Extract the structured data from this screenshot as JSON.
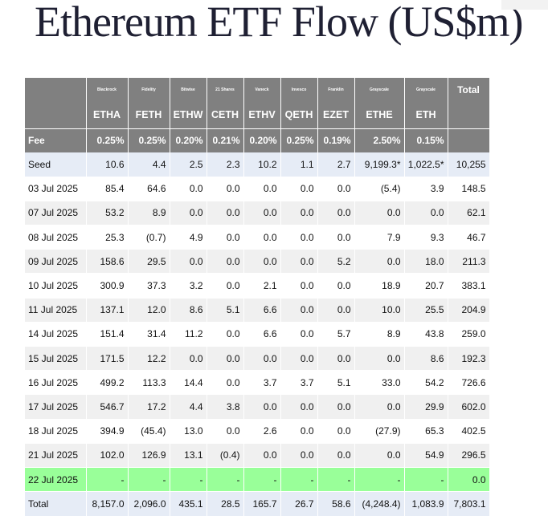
{
  "title": "Ethereum ETF Flow (US$m)",
  "header": {
    "issuers": [
      "Blackrock",
      "Fidelity",
      "Bitwise",
      "21 Shares",
      "Vaneck",
      "Invesco",
      "Franklin",
      "Grayscale",
      "Grayscale"
    ],
    "total_label": "Total",
    "tickers": [
      "ETHA",
      "FETH",
      "ETHW",
      "CETH",
      "ETHV",
      "QETH",
      "EZET",
      "ETHE",
      "ETH"
    ],
    "fee_label": "Fee",
    "fees": [
      "0.25%",
      "0.25%",
      "0.20%",
      "0.21%",
      "0.20%",
      "0.25%",
      "0.19%",
      "2.50%",
      "0.15%"
    ]
  },
  "rows": [
    {
      "label": "Seed",
      "values": [
        "10.6",
        "4.4",
        "2.5",
        "2.3",
        "10.2",
        "1.1",
        "2.7",
        "9,199.3*",
        "1,022.5*"
      ],
      "total": "10,255",
      "style": "seed"
    },
    {
      "label": "03 Jul 2025",
      "values": [
        "85.4",
        "64.6",
        "0.0",
        "0.0",
        "0.0",
        "0.0",
        "0.0",
        "(5.4)",
        "3.9"
      ],
      "total": "148.5",
      "style": "odd"
    },
    {
      "label": "07 Jul 2025",
      "values": [
        "53.2",
        "8.9",
        "0.0",
        "0.0",
        "0.0",
        "0.0",
        "0.0",
        "0.0",
        "0.0"
      ],
      "total": "62.1",
      "style": "even"
    },
    {
      "label": "08 Jul 2025",
      "values": [
        "25.3",
        "(0.7)",
        "4.9",
        "0.0",
        "0.0",
        "0.0",
        "0.0",
        "7.9",
        "9.3"
      ],
      "total": "46.7",
      "style": "odd"
    },
    {
      "label": "09 Jul 2025",
      "values": [
        "158.6",
        "29.5",
        "0.0",
        "0.0",
        "0.0",
        "0.0",
        "5.2",
        "0.0",
        "18.0"
      ],
      "total": "211.3",
      "style": "even"
    },
    {
      "label": "10 Jul 2025",
      "values": [
        "300.9",
        "37.3",
        "3.2",
        "0.0",
        "2.1",
        "0.0",
        "0.0",
        "18.9",
        "20.7"
      ],
      "total": "383.1",
      "style": "odd"
    },
    {
      "label": "11 Jul 2025",
      "values": [
        "137.1",
        "12.0",
        "8.6",
        "5.1",
        "6.6",
        "0.0",
        "0.0",
        "10.0",
        "25.5"
      ],
      "total": "204.9",
      "style": "even"
    },
    {
      "label": "14 Jul 2025",
      "values": [
        "151.4",
        "31.4",
        "11.2",
        "0.0",
        "6.6",
        "0.0",
        "5.7",
        "8.9",
        "43.8"
      ],
      "total": "259.0",
      "style": "odd"
    },
    {
      "label": "15 Jul 2025",
      "values": [
        "171.5",
        "12.2",
        "0.0",
        "0.0",
        "0.0",
        "0.0",
        "0.0",
        "0.0",
        "8.6"
      ],
      "total": "192.3",
      "style": "even"
    },
    {
      "label": "16 Jul 2025",
      "values": [
        "499.2",
        "113.3",
        "14.4",
        "0.0",
        "3.7",
        "3.7",
        "5.1",
        "33.0",
        "54.2"
      ],
      "total": "726.6",
      "style": "odd"
    },
    {
      "label": "17 Jul 2025",
      "values": [
        "546.7",
        "17.2",
        "4.4",
        "3.8",
        "0.0",
        "0.0",
        "0.0",
        "0.0",
        "29.9"
      ],
      "total": "602.0",
      "style": "even"
    },
    {
      "label": "18 Jul 2025",
      "values": [
        "394.9",
        "(45.4)",
        "13.0",
        "0.0",
        "2.6",
        "0.0",
        "0.0",
        "(27.9)",
        "65.3"
      ],
      "total": "402.5",
      "style": "odd"
    },
    {
      "label": "21 Jul 2025",
      "values": [
        "102.0",
        "126.9",
        "13.1",
        "(0.4)",
        "0.0",
        "0.0",
        "0.0",
        "0.0",
        "54.9"
      ],
      "total": "296.5",
      "style": "even"
    },
    {
      "label": "22 Jul 2025",
      "values": [
        "-",
        "-",
        "-",
        "-",
        "-",
        "-",
        "-",
        "-",
        "-"
      ],
      "total": "0.0",
      "style": "hl"
    }
  ],
  "totals": {
    "label": "Total",
    "values": [
      "8,157.0",
      "2,096.0",
      "435.1",
      "28.5",
      "165.7",
      "26.7",
      "58.6",
      "(4,248.4)",
      "1,083.9"
    ],
    "total": "7,803.1"
  },
  "colors": {
    "header_bg": "#808080",
    "negative": "#cc0000",
    "highlight_row": "#99ff99",
    "seed_total_bg": "#e6ecf6"
  }
}
